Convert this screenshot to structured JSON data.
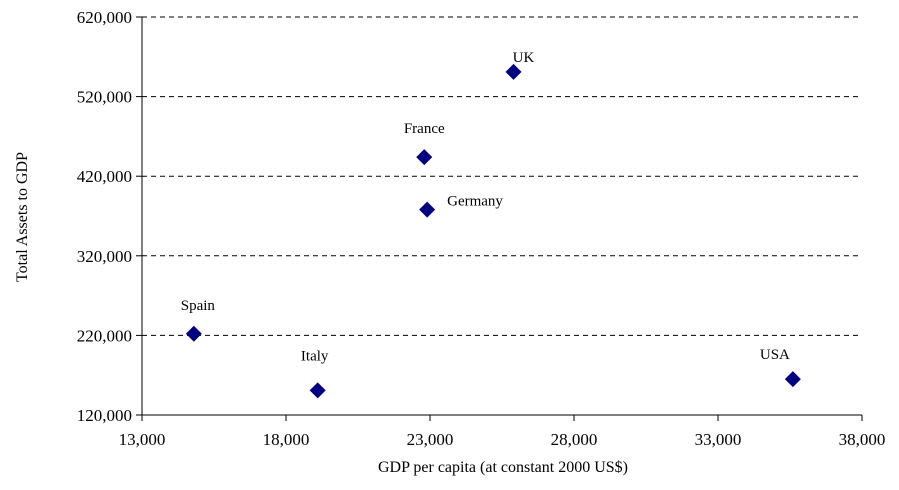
{
  "chart_data": {
    "type": "scatter",
    "title": "",
    "xlabel": "GDP per capita (at constant 2000 US$)",
    "ylabel": "Total Assets to GDP",
    "xlim": [
      13000,
      38000
    ],
    "ylim": [
      120000,
      620000
    ],
    "x_ticks": [
      13000,
      18000,
      23000,
      28000,
      33000,
      38000
    ],
    "x_tick_labels": [
      "13,000",
      "18,000",
      "23,000",
      "28,000",
      "33,000",
      "38,000"
    ],
    "y_ticks": [
      120000,
      220000,
      320000,
      420000,
      520000,
      620000
    ],
    "y_tick_labels": [
      "120,000",
      "220,000",
      "320,000",
      "420,000",
      "520,000",
      "620,000"
    ],
    "grid": "horizontal dashed",
    "legend": "none",
    "marker": "diamond",
    "marker_color": "#000080",
    "points": [
      {
        "label": "UK",
        "x": 25900,
        "y": 551000
      },
      {
        "label": "France",
        "x": 22800,
        "y": 444000
      },
      {
        "label": "Germany",
        "x": 22900,
        "y": 378000
      },
      {
        "label": "Spain",
        "x": 14800,
        "y": 222000
      },
      {
        "label": "Italy",
        "x": 19100,
        "y": 151000
      },
      {
        "label": "USA",
        "x": 35600,
        "y": 165000
      }
    ]
  }
}
